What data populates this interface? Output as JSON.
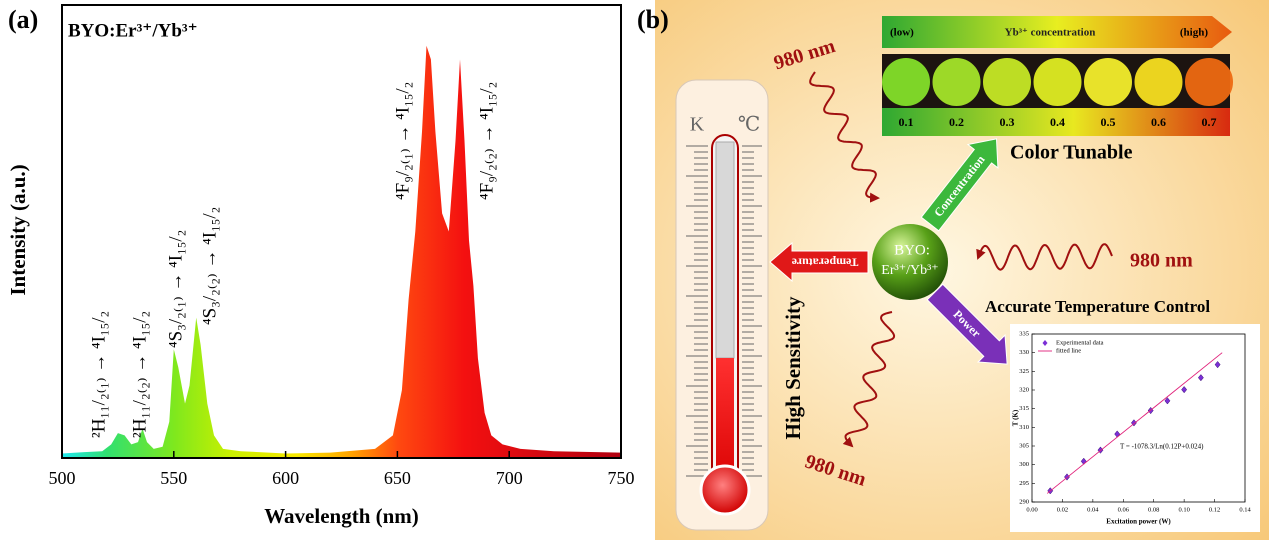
{
  "panel_labels": [
    "(a)",
    "(b)"
  ],
  "chart_data": [
    {
      "type": "area",
      "title": "BYO:Er³⁺/Yb³⁺",
      "x_label": "Wavelength (nm)",
      "y_label": "Intensity (a.u.)",
      "x": [
        500,
        510,
        518,
        522,
        525,
        528,
        531,
        534,
        536,
        538,
        541,
        545,
        548,
        550,
        552,
        555,
        557,
        560,
        562,
        565,
        568,
        572,
        580,
        600,
        620,
        640,
        648,
        652,
        655,
        658,
        661,
        663,
        665,
        667,
        670,
        673,
        676,
        678,
        680,
        682,
        684,
        686,
        689,
        692,
        697,
        705,
        720,
        750
      ],
      "values": [
        1,
        1.3,
        1.5,
        3,
        5.5,
        5,
        3,
        3.5,
        6.5,
        3.5,
        2,
        2.5,
        8,
        24,
        20,
        12,
        16,
        31,
        25,
        12,
        5,
        2,
        1.5,
        1,
        1.2,
        2,
        5,
        15,
        35,
        50,
        72,
        91,
        88,
        72,
        54,
        50,
        70,
        88,
        70,
        48,
        38,
        22,
        10,
        5,
        3,
        2,
        1.5,
        1.2
      ],
      "xlim": [
        500,
        750
      ],
      "xticks": [
        500,
        550,
        600,
        650,
        700,
        750
      ],
      "ylim": [
        0,
        100
      ],
      "annotations": [
        "²H₁₁/₂₍₁₎ → ⁴I₁₅/₂",
        "²H₁₁/₂₍₂₎ → ⁴I₁₅/₂",
        "⁴S₃/₂₍₁₎ → ⁴I₁₅/₂",
        "⁴S₃/₂₍₂₎ → ⁴I₁₅/₂",
        "⁴F₉/₂₍₁₎ → ⁴I₁₅/₂",
        "⁴F₉/₂₍₂₎ → ⁴I₁₅/₂"
      ]
    },
    {
      "type": "scatter",
      "x_label": "Excitation power (W)",
      "y_label": "T (K)",
      "annotation": "T = -1078.3/Ln(0.12P+0.024)",
      "series": [
        {
          "name": "Experimental data",
          "type": "scatter",
          "color": "#7b2fd6",
          "x": [
            0.012,
            0.023,
            0.034,
            0.045,
            0.056,
            0.067,
            0.078,
            0.089,
            0.1,
            0.111,
            0.122
          ],
          "values": [
            293,
            296.7,
            300.9,
            303.9,
            308.2,
            311.2,
            314.5,
            317.1,
            320.1,
            323.3,
            326.8
          ]
        },
        {
          "name": "fitted line",
          "type": "line",
          "color": "#e0207a",
          "x": [
            0.01,
            0.125
          ],
          "values": [
            292.3,
            330
          ]
        }
      ],
      "xlim": [
        0,
        0.14
      ],
      "xticks": [
        {
          "value": 0,
          "label": "0.00"
        },
        0.02,
        0.04,
        0.06,
        0.08,
        {
          "value": 0.1,
          "label": "0.10"
        },
        0.12,
        0.14
      ],
      "ylim": [
        290,
        335
      ],
      "yticks": [
        290,
        295,
        300,
        305,
        310,
        315,
        320,
        325,
        330,
        335
      ]
    }
  ],
  "diagram": {
    "center": [
      "BYO:",
      "Er³⁺/Yb³⁺"
    ],
    "arrows": [
      "Temperature",
      "Concentration",
      "Power"
    ],
    "excitation": [
      "980 nm",
      "980 nm",
      "980 nm"
    ],
    "color_tunable": "Color Tunable",
    "temperature_control": "Accurate Temperature Control",
    "high_sensitivity": "High Sensitivity",
    "thermometer_units": [
      "K",
      "℃"
    ],
    "concentration_bar": {
      "low": "(low)",
      "title": "Yb³⁺ concentration",
      "high": "(high)",
      "levels": [
        {
          "label": "0.1",
          "color": "#84e02a"
        },
        {
          "label": "0.2",
          "color": "#a4e42a"
        },
        {
          "label": "0.3",
          "color": "#c6e826"
        },
        {
          "label": "0.4",
          "color": "#dfec22"
        },
        {
          "label": "0.5",
          "color": "#f3ee2c"
        },
        {
          "label": "0.6",
          "color": "#f7df20"
        },
        {
          "label": "0.7",
          "color": "#ee6a12"
        }
      ]
    }
  }
}
